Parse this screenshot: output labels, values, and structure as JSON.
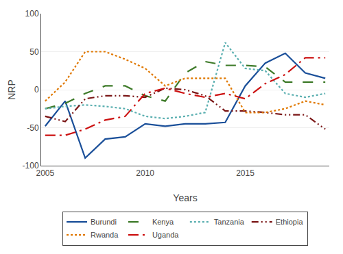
{
  "chart_data": {
    "type": "line",
    "x": [
      2005,
      2006,
      2007,
      2008,
      2009,
      2010,
      2011,
      2012,
      2013,
      2014,
      2015,
      2016,
      2017,
      2018,
      2019
    ],
    "series": [
      {
        "name": "Burundi",
        "color": "#1a4f99",
        "line_style": "solid",
        "values": [
          -48,
          -15,
          -90,
          -65,
          -62,
          -45,
          -48,
          -45,
          -45,
          -43,
          5,
          35,
          48,
          22,
          15
        ]
      },
      {
        "name": "Kenya",
        "color": "#3d7a28",
        "line_style": "longdash",
        "values": [
          -25,
          -18,
          -5,
          5,
          5,
          -8,
          -15,
          22,
          37,
          32,
          32,
          30,
          10,
          10,
          10
        ]
      },
      {
        "name": "Tanzania",
        "color": "#5aafb0",
        "line_style": "dot",
        "values": [
          -25,
          -22,
          -20,
          -22,
          -25,
          -35,
          -38,
          -35,
          -30,
          62,
          28,
          25,
          -5,
          -10,
          -5
        ]
      },
      {
        "name": "Ethiopia",
        "color": "#7a1515",
        "line_style": "dashdotdot",
        "values": [
          -35,
          -42,
          -12,
          -8,
          -8,
          -10,
          2,
          0,
          -8,
          -28,
          -28,
          -30,
          -33,
          -33,
          -52
        ]
      },
      {
        "name": "Rwanda",
        "color": "#e07800",
        "line_style": "dot",
        "values": [
          -15,
          10,
          50,
          50,
          40,
          28,
          5,
          15,
          15,
          15,
          -30,
          -30,
          -25,
          -15,
          -20
        ]
      },
      {
        "name": "Uganda",
        "color": "#cc1111",
        "line_style": "dashdot",
        "values": [
          -60,
          -60,
          -52,
          -40,
          -35,
          -5,
          2,
          -5,
          -10,
          -5,
          -12,
          8,
          20,
          42,
          42
        ]
      }
    ],
    "xlabel": "Years",
    "ylabel": "NRP",
    "xlim": [
      2004.8,
      2019.2
    ],
    "xticks": [
      2005,
      2010,
      2015
    ],
    "ylim": [
      -100,
      100
    ],
    "yticks": [
      -100,
      -50,
      0,
      50,
      100
    ],
    "grid": "y",
    "legend": "bottom"
  }
}
